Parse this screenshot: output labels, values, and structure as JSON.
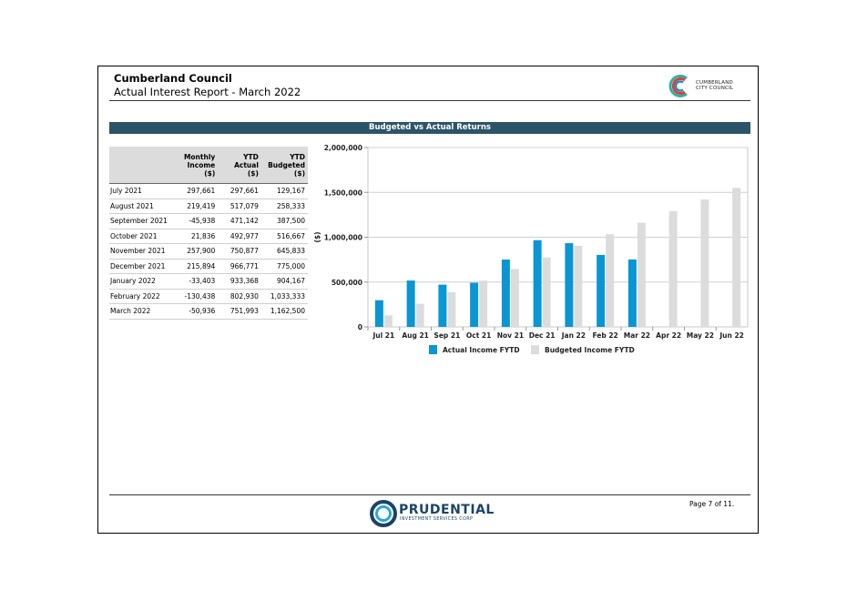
{
  "header": {
    "title": "Cumberland Council",
    "subtitle": "Actual Interest Report - March 2022",
    "logo_text_line1": "CUMBERLAND",
    "logo_text_line2": "CITY COUNCIL"
  },
  "banner": {
    "title": "Budgeted vs Actual Returns"
  },
  "table": {
    "headers": [
      {
        "l1": "",
        "l2": "",
        "l3": ""
      },
      {
        "l1": "Monthly",
        "l2": "Income",
        "l3": "($)"
      },
      {
        "l1": "YTD",
        "l2": "Actual",
        "l3": "($)"
      },
      {
        "l1": "YTD",
        "l2": "Budgeted",
        "l3": "($)"
      }
    ],
    "rows": [
      [
        "July 2021",
        "297,661",
        "297,661",
        "129,167"
      ],
      [
        "August 2021",
        "219,419",
        "517,079",
        "258,333"
      ],
      [
        "September 2021",
        "-45,938",
        "471,142",
        "387,500"
      ],
      [
        "October 2021",
        "21,836",
        "492,977",
        "516,667"
      ],
      [
        "November 2021",
        "257,900",
        "750,877",
        "645,833"
      ],
      [
        "December 2021",
        "215,894",
        "966,771",
        "775,000"
      ],
      [
        "January 2022",
        "-33,403",
        "933,368",
        "904,167"
      ],
      [
        "February 2022",
        "-130,438",
        "802,930",
        "1,033,333"
      ],
      [
        "March 2022",
        "-50,936",
        "751,993",
        "1,162,500"
      ]
    ]
  },
  "chart_data": {
    "type": "bar",
    "categories": [
      "Jul 21",
      "Aug 21",
      "Sep 21",
      "Oct 21",
      "Nov 21",
      "Dec 21",
      "Jan 22",
      "Feb 22",
      "Mar 22",
      "Apr 22",
      "May 22",
      "Jun 22"
    ],
    "series": [
      {
        "name": "Actual Income FYTD",
        "color": "#0a96d2",
        "values": [
          297661,
          517079,
          471142,
          492977,
          750877,
          966771,
          933368,
          802930,
          751993,
          null,
          null,
          null
        ]
      },
      {
        "name": "Budgeted Income FYTD",
        "color": "#dcdcdc",
        "values": [
          129167,
          258333,
          387500,
          516667,
          645833,
          775000,
          904167,
          1033333,
          1162500,
          1291667,
          1420833,
          1550000
        ]
      }
    ],
    "ylabel": "($)",
    "ylim": [
      0,
      2000000
    ],
    "yticks": [
      0,
      500000,
      1000000,
      1500000,
      2000000
    ],
    "ytick_labels": [
      "0",
      "500,000",
      "1,000,000",
      "1,500,000",
      "2,000,000"
    ],
    "grid": true,
    "legend": "bottom"
  },
  "footer": {
    "page_label": "Page 7 of 11.",
    "brand_name": "PRUDENTIAL",
    "brand_sub": "INVESTMENT SERVICES CORP"
  }
}
